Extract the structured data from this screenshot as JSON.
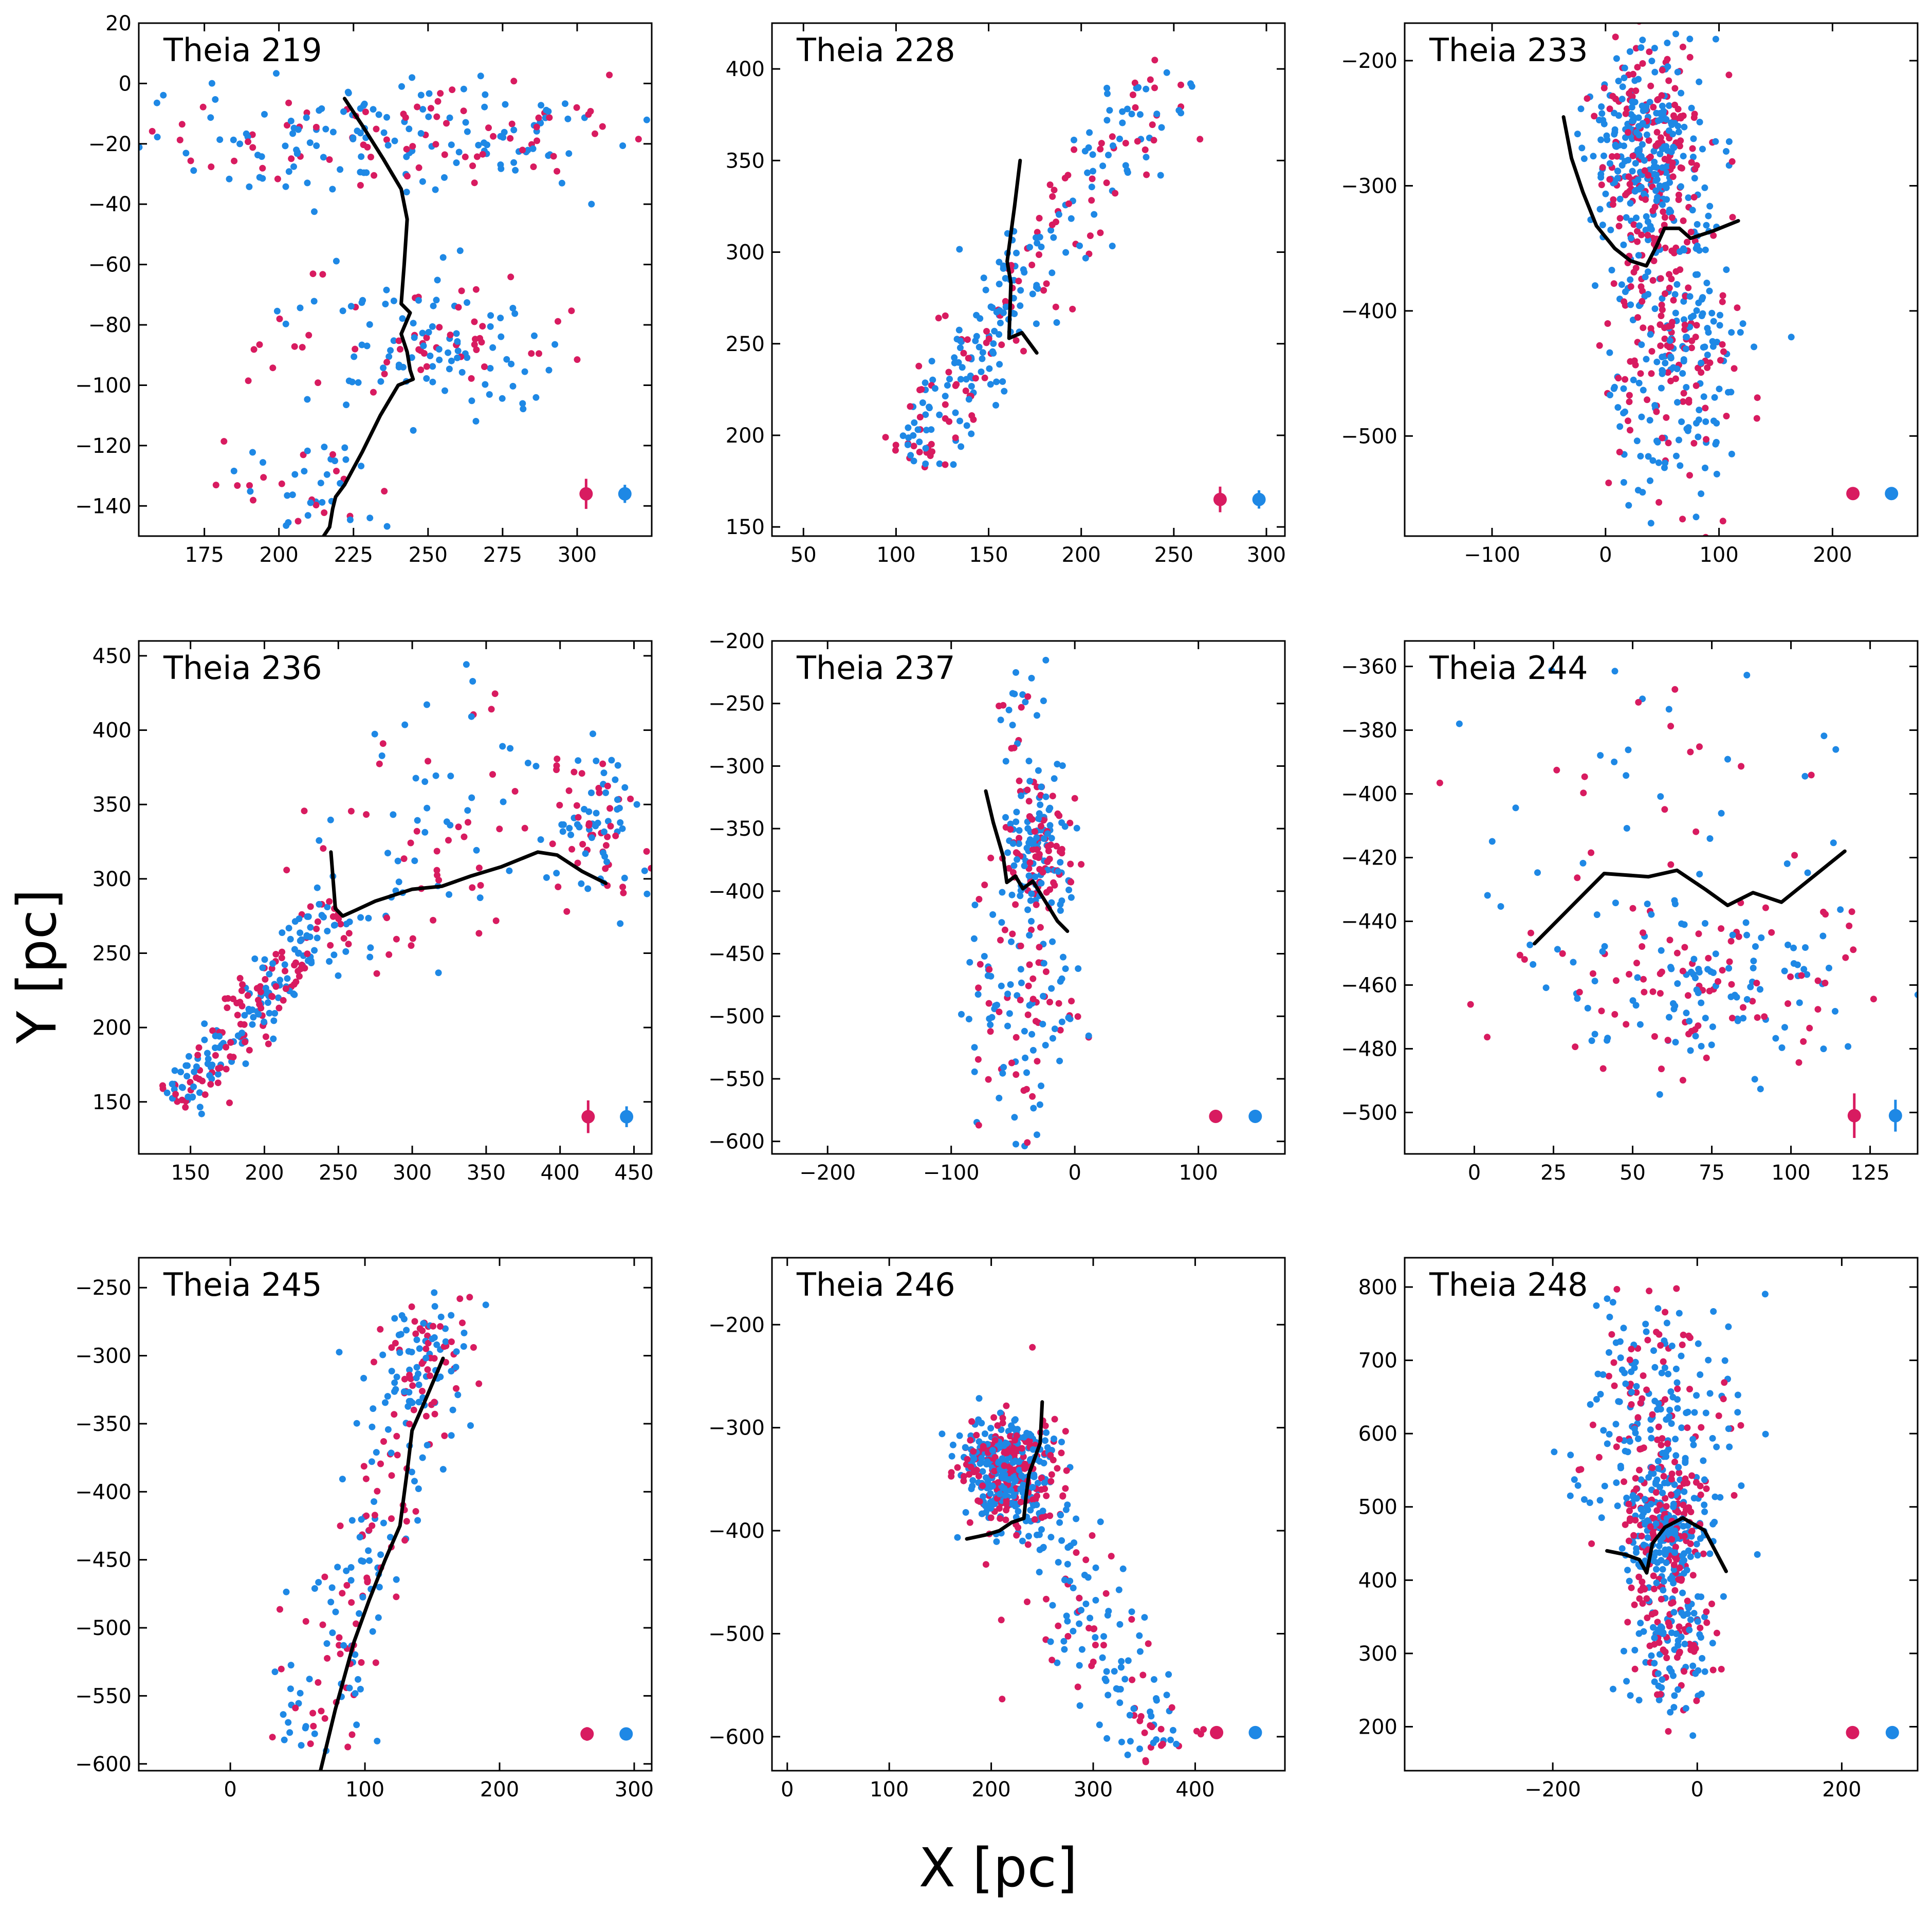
{
  "figure": {
    "xlabel": "X [pc]",
    "ylabel": "Y [pc]",
    "colors": {
      "red": "#d81b60",
      "blue": "#1e88e5",
      "line": "#000000",
      "frame": "#000000"
    }
  },
  "chart_data": [
    {
      "type": "scatter",
      "title": "Theia 219",
      "xlim": [
        153,
        325
      ],
      "ylim": [
        -150,
        20
      ],
      "xticks": [
        175,
        200,
        225,
        250,
        275,
        300
      ],
      "yticks": [
        20,
        0,
        -20,
        -40,
        -60,
        -80,
        -100,
        -120,
        -140
      ],
      "line": [
        [
          222,
          -5
        ],
        [
          228,
          -14
        ],
        [
          235,
          -25
        ],
        [
          241,
          -35
        ],
        [
          243,
          -45
        ],
        [
          242,
          -60
        ],
        [
          241,
          -73
        ],
        [
          244,
          -76
        ],
        [
          241,
          -83
        ],
        [
          243,
          -89
        ],
        [
          244,
          -95
        ],
        [
          245,
          -98
        ],
        [
          240,
          -100
        ],
        [
          234,
          -110
        ],
        [
          228,
          -122
        ],
        [
          222,
          -133
        ],
        [
          219,
          -137
        ],
        [
          218,
          -141
        ],
        [
          217,
          -147
        ],
        [
          215,
          -150
        ]
      ],
      "clumps": [
        {
          "cx": 240,
          "cy": -18,
          "sx": 45,
          "sy": 9,
          "n": 220
        },
        {
          "cx": 250,
          "cy": -86,
          "sx": 28,
          "sy": 11,
          "n": 140
        },
        {
          "cx": 210,
          "cy": -134,
          "sx": 12,
          "sy": 7,
          "n": 45
        }
      ],
      "err_red": {
        "x": 303,
        "y": -136,
        "ye": 5
      },
      "err_blue": {
        "x": 316,
        "y": -136,
        "ye": 3
      }
    },
    {
      "type": "scatter",
      "title": "Theia 228",
      "xlim": [
        33,
        310
      ],
      "ylim": [
        145,
        425
      ],
      "xticks": [
        50,
        100,
        150,
        200,
        250,
        300
      ],
      "yticks": [
        400,
        350,
        300,
        250,
        200,
        150
      ],
      "line": [
        [
          167,
          350
        ],
        [
          164,
          325
        ],
        [
          160,
          295
        ],
        [
          162,
          283
        ],
        [
          161,
          253
        ],
        [
          168,
          256
        ],
        [
          176,
          245
        ]
      ],
      "clumps": [
        {
          "x1": 110,
          "y1": 185,
          "x2": 170,
          "y2": 290,
          "w": 10,
          "n": 170
        },
        {
          "x1": 165,
          "y1": 285,
          "x2": 250,
          "y2": 400,
          "w": 14,
          "n": 110
        }
      ],
      "err_red": {
        "x": 275,
        "y": 165,
        "ye": 7
      },
      "err_blue": {
        "x": 296,
        "y": 165,
        "ye": 5
      }
    },
    {
      "type": "scatter",
      "title": "Theia 233",
      "xlim": [
        -177,
        275
      ],
      "ylim": [
        -580,
        -170
      ],
      "xticks": [
        -100,
        0,
        100,
        200
      ],
      "yticks": [
        -200,
        -300,
        -400,
        -500
      ],
      "line": [
        [
          -37,
          -245
        ],
        [
          -30,
          -278
        ],
        [
          -20,
          -305
        ],
        [
          -8,
          -332
        ],
        [
          8,
          -350
        ],
        [
          22,
          -360
        ],
        [
          36,
          -364
        ],
        [
          45,
          -348
        ],
        [
          52,
          -334
        ],
        [
          65,
          -334
        ],
        [
          75,
          -342
        ],
        [
          95,
          -336
        ],
        [
          117,
          -328
        ]
      ],
      "clumps": [
        {
          "cx": 38,
          "cy": -268,
          "sx": 24,
          "sy": 40,
          "n": 360
        },
        {
          "cx": 58,
          "cy": -420,
          "sx": 30,
          "sy": 70,
          "n": 330
        }
      ],
      "err_red": {
        "x": 218,
        "y": -546,
        "ye": 4
      },
      "err_blue": {
        "x": 252,
        "y": -546,
        "ye": 3
      }
    },
    {
      "type": "scatter",
      "title": "Theia 236",
      "xlim": [
        115,
        462
      ],
      "ylim": [
        115,
        460
      ],
      "xticks": [
        150,
        200,
        250,
        300,
        350,
        400,
        450
      ],
      "yticks": [
        450,
        400,
        350,
        300,
        250,
        200,
        150
      ],
      "line": [
        [
          245,
          318
        ],
        [
          248,
          280
        ],
        [
          253,
          275
        ],
        [
          262,
          279
        ],
        [
          275,
          285
        ],
        [
          300,
          293
        ],
        [
          320,
          295
        ],
        [
          340,
          302
        ],
        [
          360,
          308
        ],
        [
          385,
          318
        ],
        [
          398,
          316
        ],
        [
          415,
          305
        ],
        [
          431,
          297
        ]
      ],
      "clumps": [
        {
          "x1": 140,
          "y1": 150,
          "x2": 250,
          "y2": 280,
          "w": 10,
          "n": 230
        },
        {
          "x1": 250,
          "y1": 260,
          "x2": 390,
          "y2": 400,
          "w": 35,
          "n": 90
        },
        {
          "cx": 425,
          "cy": 340,
          "sx": 20,
          "sy": 30,
          "n": 90
        }
      ],
      "err_red": {
        "x": 419,
        "y": 140,
        "ye": 11
      },
      "err_blue": {
        "x": 445,
        "y": 140,
        "ye": 7
      }
    },
    {
      "type": "scatter",
      "title": "Theia 237",
      "xlim": [
        -245,
        170
      ],
      "ylim": [
        -610,
        -200
      ],
      "xticks": [
        -200,
        -100,
        0,
        100
      ],
      "yticks": [
        -200,
        -250,
        -300,
        -350,
        -400,
        -450,
        -500,
        -550,
        -600
      ],
      "line": [
        [
          -72,
          -320
        ],
        [
          -66,
          -345
        ],
        [
          -58,
          -372
        ],
        [
          -55,
          -393
        ],
        [
          -48,
          -388
        ],
        [
          -42,
          -398
        ],
        [
          -34,
          -392
        ],
        [
          -24,
          -408
        ],
        [
          -14,
          -424
        ],
        [
          -6,
          -432
        ]
      ],
      "clumps": [
        {
          "cx": -30,
          "cy": -360,
          "sx": 14,
          "sy": 28,
          "n": 170
        },
        {
          "cx": -40,
          "cy": -490,
          "sx": 24,
          "sy": 55,
          "n": 130
        },
        {
          "cx": -45,
          "cy": -245,
          "sx": 8,
          "sy": 30,
          "n": 25
        }
      ],
      "err_red": {
        "x": 114,
        "y": -580,
        "ye": 5
      },
      "err_blue": {
        "x": 146,
        "y": -580,
        "ye": 3
      }
    },
    {
      "type": "scatter",
      "title": "Theia 244",
      "xlim": [
        -22,
        140
      ],
      "ylim": [
        -513,
        -352
      ],
      "xticks": [
        0,
        25,
        50,
        75,
        100,
        125
      ],
      "yticks": [
        -360,
        -380,
        -400,
        -420,
        -440,
        -460,
        -480,
        -500
      ],
      "line": [
        [
          19,
          -447
        ],
        [
          30,
          -436
        ],
        [
          41,
          -425
        ],
        [
          55,
          -426
        ],
        [
          64,
          -424
        ],
        [
          73,
          -430
        ],
        [
          80,
          -435
        ],
        [
          88,
          -431
        ],
        [
          97,
          -434
        ],
        [
          117,
          -418
        ]
      ],
      "clumps": [
        {
          "cx": 72,
          "cy": -460,
          "sx": 25,
          "sy": 14,
          "n": 190
        },
        {
          "cx": 60,
          "cy": -395,
          "sx": 30,
          "sy": 20,
          "n": 45
        }
      ],
      "err_red": {
        "x": 120,
        "y": -501,
        "ye": 7
      },
      "err_blue": {
        "x": 133,
        "y": -501,
        "ye": 5
      }
    },
    {
      "type": "scatter",
      "title": "Theia 245",
      "xlim": [
        -68,
        313
      ],
      "ylim": [
        -605,
        -228
      ],
      "xticks": [
        0,
        100,
        200,
        300
      ],
      "yticks": [
        -250,
        -300,
        -350,
        -400,
        -450,
        -500,
        -550,
        -600
      ],
      "line": [
        [
          67,
          -605
        ],
        [
          78,
          -560
        ],
        [
          92,
          -510
        ],
        [
          103,
          -480
        ],
        [
          115,
          -450
        ],
        [
          126,
          -425
        ],
        [
          132,
          -380
        ],
        [
          135,
          -355
        ],
        [
          146,
          -330
        ],
        [
          158,
          -302
        ]
      ],
      "clumps": [
        {
          "x1": 60,
          "y1": -590,
          "x2": 150,
          "y2": -275,
          "w": 20,
          "n": 200
        },
        {
          "cx": 150,
          "cy": -310,
          "sx": 15,
          "sy": 30,
          "n": 60
        }
      ],
      "err_red": {
        "x": 265,
        "y": -578,
        "ye": 5
      },
      "err_blue": {
        "x": 294,
        "y": -578,
        "ye": 3
      }
    },
    {
      "type": "scatter",
      "title": "Theia 246",
      "xlim": [
        -15,
        488
      ],
      "ylim": [
        -633,
        -135
      ],
      "xticks": [
        0,
        100,
        200,
        300,
        400
      ],
      "yticks": [
        -200,
        -300,
        -400,
        -500,
        -600
      ],
      "line": [
        [
          176,
          -408
        ],
        [
          195,
          -404
        ],
        [
          208,
          -400
        ],
        [
          220,
          -392
        ],
        [
          232,
          -388
        ],
        [
          234,
          -368
        ],
        [
          237,
          -345
        ],
        [
          248,
          -315
        ],
        [
          250,
          -275
        ]
      ],
      "clumps": [
        {
          "cx": 214,
          "cy": -340,
          "sx": 22,
          "sy": 26,
          "n": 430
        },
        {
          "x1": 230,
          "y1": -380,
          "x2": 370,
          "y2": -620,
          "w": 25,
          "n": 150
        }
      ],
      "err_red": {
        "x": 421,
        "y": -596,
        "ye": 6
      },
      "err_blue": {
        "x": 459,
        "y": -596,
        "ye": 4
      }
    },
    {
      "type": "scatter",
      "title": "Theia 248",
      "xlim": [
        -405,
        305
      ],
      "ylim": [
        140,
        840
      ],
      "xticks": [
        -200,
        0,
        200
      ],
      "yticks": [
        800,
        700,
        600,
        500,
        400,
        300,
        200
      ],
      "line": [
        [
          -125,
          440
        ],
        [
          -100,
          435
        ],
        [
          -80,
          428
        ],
        [
          -70,
          410
        ],
        [
          -62,
          450
        ],
        [
          -45,
          472
        ],
        [
          -20,
          485
        ],
        [
          -8,
          478
        ],
        [
          10,
          468
        ],
        [
          25,
          440
        ],
        [
          40,
          412
        ]
      ],
      "clumps": [
        {
          "cx": -45,
          "cy": 470,
          "sx": 30,
          "sy": 45,
          "n": 250
        },
        {
          "cx": -55,
          "cy": 620,
          "sx": 55,
          "sy": 85,
          "n": 230
        },
        {
          "cx": -35,
          "cy": 330,
          "sx": 30,
          "sy": 55,
          "n": 170
        }
      ],
      "err_red": {
        "x": 215,
        "y": 192,
        "ye": 5
      },
      "err_blue": {
        "x": 270,
        "y": 192,
        "ye": 3
      }
    }
  ]
}
